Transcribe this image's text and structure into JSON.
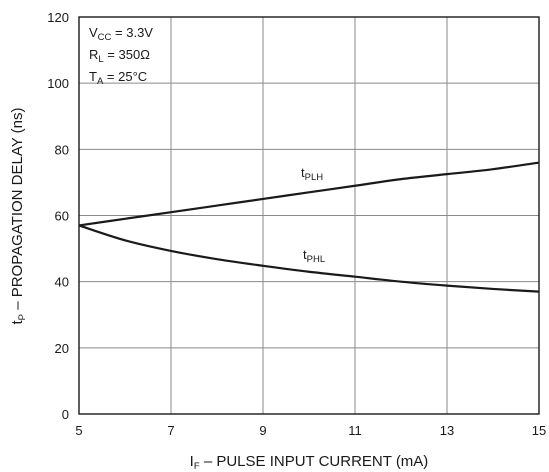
{
  "chart_data": {
    "type": "line",
    "ylabel_main": "t",
    "ylabel_sub": "P",
    "ylabel_rest": " – PROPAGATION DELAY (ns)",
    "xlabel_main": "I",
    "xlabel_sub": "F",
    "xlabel_rest": " – PULSE INPUT CURRENT (mA)",
    "xlim": [
      5,
      15
    ],
    "ylim": [
      0,
      120
    ],
    "xticks": [
      5,
      7,
      9,
      11,
      13,
      15
    ],
    "yticks": [
      0,
      20,
      40,
      60,
      80,
      100,
      120
    ],
    "grid": true,
    "conditions": [
      {
        "main": "V",
        "sub": "CC",
        "rest": " = 3.3V"
      },
      {
        "main": "R",
        "sub": "L",
        "rest": " = 350Ω"
      },
      {
        "main": "T",
        "sub": "A",
        "rest": " = 25°C"
      }
    ],
    "series": [
      {
        "name_main": "t",
        "name_sub": "PLH",
        "x": [
          5,
          6,
          7,
          8,
          9,
          10,
          11,
          12,
          13,
          14,
          15
        ],
        "values": [
          57,
          59,
          61,
          63,
          65,
          67,
          69,
          71,
          72.5,
          74,
          76
        ]
      },
      {
        "name_main": "t",
        "name_sub": "PHL",
        "x": [
          5,
          6,
          7,
          8,
          9,
          10,
          11,
          12,
          13,
          14,
          15
        ],
        "values": [
          57,
          52.5,
          49.3,
          46.8,
          44.8,
          43,
          41.5,
          40,
          38.8,
          37.8,
          37
        ]
      }
    ]
  }
}
